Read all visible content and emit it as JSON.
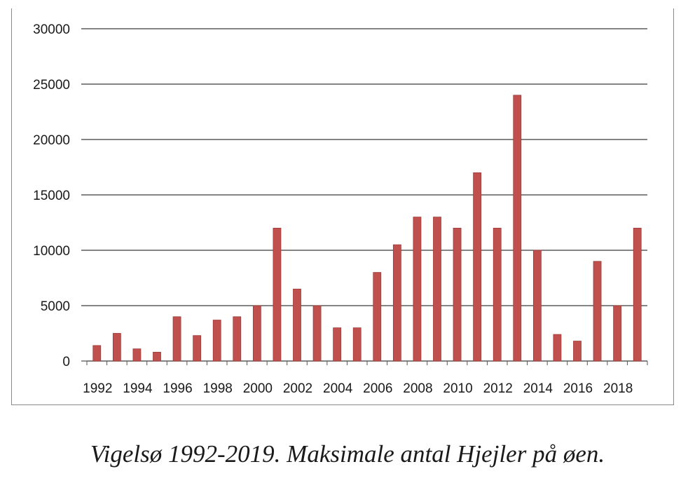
{
  "caption": "Vigelsø 1992-2019. Maksimale antal Hjejler på øen.",
  "chart_data": {
    "type": "bar",
    "title": "",
    "xlabel": "",
    "ylabel": "",
    "ylim": [
      0,
      30000
    ],
    "yticks": [
      0,
      5000,
      10000,
      15000,
      20000,
      25000,
      30000
    ],
    "grid": true,
    "legend": "none",
    "bar_color": "#c0504d",
    "categories": [
      "1992",
      "1993",
      "1994",
      "1995",
      "1996",
      "1997",
      "1998",
      "1999",
      "2000",
      "2001",
      "2002",
      "2003",
      "2004",
      "2005",
      "2006",
      "2007",
      "2008",
      "2009",
      "2010",
      "2011",
      "2012",
      "2013",
      "2014",
      "2015",
      "2016",
      "2017",
      "2018",
      "2019"
    ],
    "xtick_labels": [
      "1992",
      "1994",
      "1996",
      "1998",
      "2000",
      "2002",
      "2004",
      "2006",
      "2008",
      "2010",
      "2012",
      "2014",
      "2016",
      "2018"
    ],
    "values": [
      1400,
      2500,
      1100,
      800,
      4000,
      2300,
      3700,
      4000,
      5000,
      12000,
      6500,
      5000,
      3000,
      3000,
      8000,
      10500,
      13000,
      13000,
      12000,
      17000,
      12000,
      24000,
      10000,
      2400,
      1800,
      9000,
      5000,
      12000
    ]
  }
}
